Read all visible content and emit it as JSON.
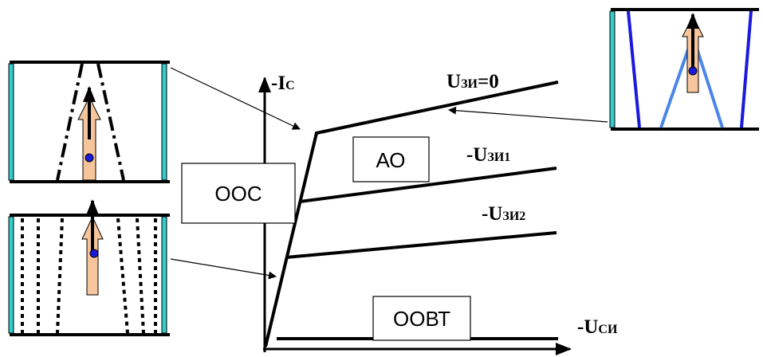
{
  "axis_y": {
    "main": "-I",
    "sub": "C"
  },
  "axis_x": {
    "main": "-U",
    "sub": "СИ"
  },
  "curves": [
    {
      "main": "U",
      "sub": "ЗИ",
      "suffix": "=0"
    },
    {
      "main": "-U",
      "sub": "ЗИ1"
    },
    {
      "main": "-U",
      "sub": "ЗИ2"
    }
  ],
  "regions": {
    "ooc": "ООС",
    "ao": "АО",
    "oovt": "ООВТ"
  }
}
